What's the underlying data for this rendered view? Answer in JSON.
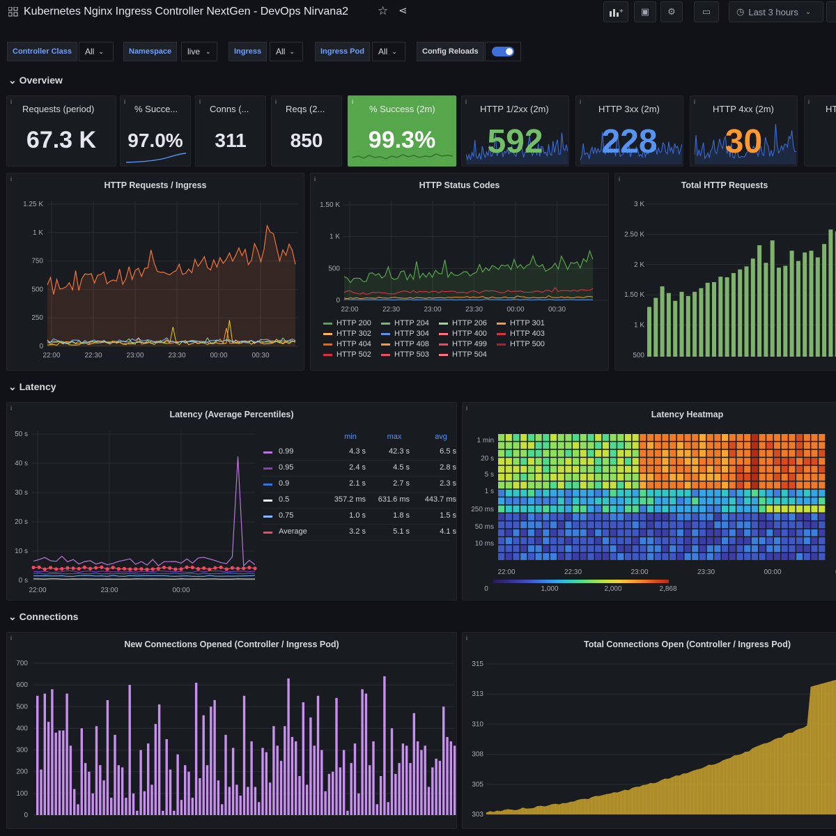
{
  "header": {
    "title": "Kubernetes Nginx Ingress Controller NextGen - DevOps Nirvana2",
    "time_range": "Last 3 hours"
  },
  "variables": [
    {
      "label": "Controller Class",
      "value": "All"
    },
    {
      "label": "Namespace",
      "value": "live"
    },
    {
      "label": "Ingress",
      "value": "All"
    },
    {
      "label": "Ingress Pod",
      "value": "All"
    },
    {
      "label": "Config Reloads",
      "value": ""
    }
  ],
  "rows": {
    "overview": "Overview",
    "latency": "Latency",
    "connections": "Connections"
  },
  "stats": [
    {
      "title": "Requests (period)",
      "value": "67.3 K"
    },
    {
      "title": "% Succe...",
      "value": "97.0%"
    },
    {
      "title": "Conns (...",
      "value": "311"
    },
    {
      "title": "Reqs (2...",
      "value": "850"
    },
    {
      "title": "% Success (2m)",
      "value": "99.3%"
    },
    {
      "title": "HTTP 1/2xx (2m)",
      "value": "592"
    },
    {
      "title": "HTTP 3xx (2m)",
      "value": "228"
    },
    {
      "title": "HTTP 4xx (2m)",
      "value": "30"
    },
    {
      "title": "HT",
      "value": ""
    }
  ],
  "colors": {
    "bg": "#111217",
    "panel": "#181b1f",
    "green": "#73bf69",
    "blue": "#5794f2",
    "orange": "#ff9830",
    "purple": "#b877d9",
    "red": "#f2495c",
    "yellow": "#c8a12e"
  },
  "panels": {
    "requests_ingress": {
      "title": "HTTP Requests / Ingress",
      "y_ticks": [
        "1.25 K",
        "1 K",
        "750",
        "500",
        "250",
        "0"
      ],
      "x_ticks": [
        "22:00",
        "22:30",
        "23:00",
        "23:30",
        "00:00",
        "00:30"
      ]
    },
    "status_codes": {
      "title": "HTTP Status Codes",
      "y_ticks": [
        "1.50 K",
        "1 K",
        "500",
        "0"
      ],
      "x_ticks": [
        "22:00",
        "22:30",
        "23:00",
        "23:30",
        "00:00",
        "00:30"
      ],
      "legend": [
        {
          "name": "HTTP 200",
          "color": "#56a64b"
        },
        {
          "name": "HTTP 204",
          "color": "#73bf69"
        },
        {
          "name": "HTTP 206",
          "color": "#96d98d"
        },
        {
          "name": "HTTP 301",
          "color": "#ff9830"
        },
        {
          "name": "HTTP 302",
          "color": "#ffb357"
        },
        {
          "name": "HTTP 304",
          "color": "#5794f2"
        },
        {
          "name": "HTTP 400",
          "color": "#ff7383"
        },
        {
          "name": "HTTP 403",
          "color": "#e02f44"
        },
        {
          "name": "HTTP 404",
          "color": "#fa6400"
        },
        {
          "name": "HTTP 408",
          "color": "#ff9830"
        },
        {
          "name": "HTTP 499",
          "color": "#f2495c"
        },
        {
          "name": "HTTP 500",
          "color": "#c4162a"
        },
        {
          "name": "HTTP 502",
          "color": "#e02f44"
        },
        {
          "name": "HTTP 503",
          "color": "#f2495c"
        },
        {
          "name": "HTTP 504",
          "color": "#ff7383"
        }
      ]
    },
    "total_requests": {
      "title": "Total HTTP Requests",
      "y_ticks": [
        "3 K",
        "2.50 K",
        "2 K",
        "1.50 K",
        "1 K",
        "500"
      ]
    },
    "latency": {
      "title": "Latency (Average Percentiles)",
      "y_ticks": [
        "50 s",
        "40 s",
        "30 s",
        "20 s",
        "10 s",
        "0 s"
      ],
      "x_ticks": [
        "22:00",
        "23:00",
        "00:00"
      ],
      "columns": [
        "min",
        "max",
        "avg"
      ],
      "rows": [
        {
          "name": "0.99",
          "color": "#b877d9",
          "min": "4.3 s",
          "max": "42.3 s",
          "avg": "6.5 s"
        },
        {
          "name": "0.95",
          "color": "#8f3bb8",
          "min": "2.4 s",
          "max": "4.5 s",
          "avg": "2.8 s"
        },
        {
          "name": "0.9",
          "color": "#3274d9",
          "min": "2.1 s",
          "max": "2.7 s",
          "avg": "2.3 s"
        },
        {
          "name": "0.5",
          "color": "#ffffff",
          "min": "357.2 ms",
          "max": "631.6 ms",
          "avg": "443.7 ms"
        },
        {
          "name": "0.75",
          "color": "#8ab8ff",
          "min": "1.0 s",
          "max": "1.8 s",
          "avg": "1.5 s"
        },
        {
          "name": "Average",
          "color": "#f2495c",
          "min": "3.2 s",
          "max": "5.1 s",
          "avg": "4.1 s"
        }
      ]
    },
    "heatmap": {
      "title": "Latency Heatmap",
      "y_ticks": [
        "1 min",
        "20 s",
        "5 s",
        "1 s",
        "250 ms",
        "50 ms",
        "10 ms"
      ],
      "x_ticks": [
        "22:00",
        "22:30",
        "23:00",
        "23:30",
        "00:00",
        "00"
      ],
      "scale_ticks": [
        "0",
        "1,000",
        "2,000",
        "2,868"
      ]
    },
    "new_conns": {
      "title": "New Connections Opened (Controller / Ingress Pod)",
      "y_ticks": [
        "700",
        "600",
        "500",
        "400",
        "300",
        "200",
        "100",
        "0"
      ]
    },
    "total_conns": {
      "title": "Total Connections Open (Controller / Ingress Pod)",
      "y_ticks": [
        "315",
        "313",
        "310",
        "308",
        "305",
        "303"
      ]
    }
  }
}
